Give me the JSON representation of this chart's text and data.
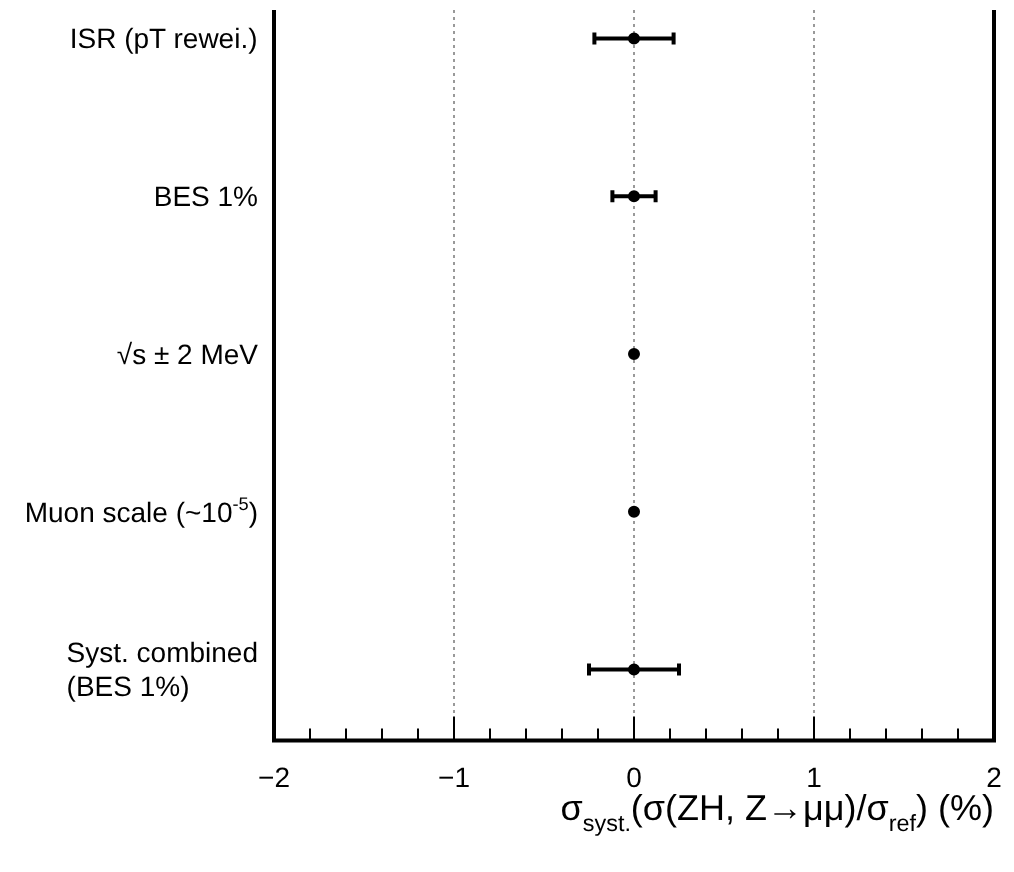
{
  "chart_data": {
    "type": "scatter",
    "orientation": "horizontal",
    "xlabel": "σ$_{syst.}$(σ(ZH, Z→μμ)/σ$_{ref}$) (%)",
    "categories": [
      "ISR (pT rewei.)",
      "BES 1%",
      "√s ± 2 MeV",
      "Muon scale (~10$^{-5}$)",
      "Syst. combined (BES 1%)"
    ],
    "values": [
      0,
      0,
      0,
      0,
      0
    ],
    "errors": [
      0.22,
      0.12,
      null,
      null,
      0.25
    ],
    "color": "#000000",
    "marker": "circle",
    "xlim": [
      -2,
      2
    ],
    "xticks": [
      -2,
      {
        "value": -1.8,
        "label": null
      },
      {
        "value": -1.6,
        "label": null
      },
      {
        "value": -1.4,
        "label": null
      },
      {
        "value": -1.2,
        "label": null
      },
      -1,
      {
        "value": -0.8,
        "label": null
      },
      {
        "value": -0.6,
        "label": null
      },
      {
        "value": -0.4,
        "label": null
      },
      {
        "value": -0.2,
        "label": null
      },
      0,
      {
        "value": 0.2,
        "label": null
      },
      {
        "value": 0.4,
        "label": null
      },
      {
        "value": 0.6,
        "label": null
      },
      {
        "value": 0.8,
        "label": null
      },
      1,
      {
        "value": 1.2,
        "label": null
      },
      {
        "value": 1.4,
        "label": null
      },
      {
        "value": 1.6,
        "label": null
      },
      {
        "value": 1.8,
        "label": null
      },
      2
    ],
    "ref_lines": [
      {
        "axis": "x",
        "value": -1,
        "line_style": "dotted",
        "color": "#999999"
      },
      {
        "axis": "x",
        "value": 0,
        "line_style": "dotted",
        "color": "#999999"
      },
      {
        "axis": "x",
        "value": 1,
        "line_style": "dotted",
        "color": "#999999"
      }
    ]
  }
}
